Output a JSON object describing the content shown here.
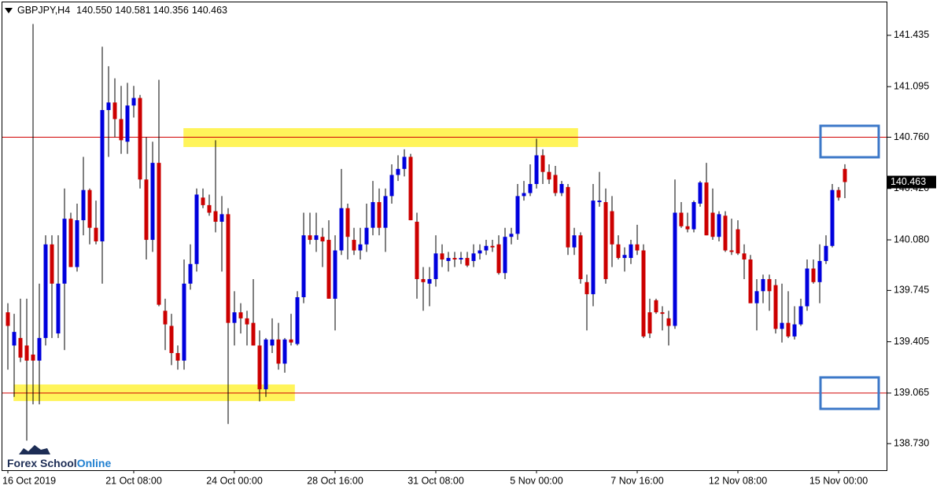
{
  "chart_data": {
    "type": "candlestick",
    "symbol": "GBPJPY,H4",
    "header_values": [
      "140.550",
      "140.581",
      "140.356",
      "140.463"
    ],
    "watermark": [
      "Forex School",
      "Online"
    ],
    "bull_color": "#0000dd",
    "bear_color": "#cc0000",
    "wick_color": "#000000",
    "level_color": "#d00000",
    "zone_color": "#fff45a",
    "levels": [
      140.76,
      139.065
    ],
    "zones": [
      {
        "low": 140.695,
        "high": 140.82
      },
      {
        "low": 139.012,
        "high": 139.122
      }
    ],
    "ylim": [
      138.554,
      141.669
    ],
    "yticks": [
      141.435,
      141.095,
      {
        "value": 140.76,
        "label": "140.760"
      },
      {
        "value": 140.42,
        "label": "140.420"
      },
      {
        "value": 140.08,
        "label": "140.080"
      },
      139.745,
      139.405,
      139.065,
      {
        "value": 138.73,
        "label": "138.730"
      }
    ],
    "grid": false,
    "categories": [
      "16 Oct 2019",
      null,
      null,
      null,
      null,
      null,
      null,
      null,
      null,
      null,
      null,
      null,
      null,
      null,
      null,
      null,
      null,
      null,
      null,
      null,
      "21 Oct 08:00",
      null,
      null,
      null,
      null,
      null,
      null,
      null,
      null,
      null,
      null,
      null,
      null,
      null,
      null,
      null,
      "24 Oct 00:00",
      null,
      null,
      null,
      null,
      null,
      null,
      null,
      null,
      null,
      null,
      null,
      null,
      null,
      null,
      null,
      "28 Oct 16:00",
      null,
      null,
      null,
      null,
      null,
      null,
      null,
      null,
      null,
      null,
      null,
      null,
      null,
      null,
      null,
      "31 Oct 08:00",
      null,
      null,
      null,
      null,
      null,
      null,
      null,
      null,
      null,
      null,
      null,
      null,
      null,
      null,
      null,
      "5 Nov 00:00",
      null,
      null,
      null,
      null,
      null,
      null,
      null,
      null,
      null,
      null,
      null,
      null,
      null,
      null,
      null,
      "7 Nov 16:00",
      null,
      null,
      null,
      null,
      null,
      null,
      null,
      null,
      null,
      null,
      null,
      null,
      null,
      null,
      null,
      "12 Nov 08:00",
      null,
      null,
      null,
      null,
      null,
      null,
      null,
      null,
      null,
      null,
      null,
      null,
      null,
      null,
      null,
      "15 Nov 00:00",
      null
    ],
    "open": [
      139.6,
      139.38,
      139.43,
      139.38,
      139.32,
      139.28,
      139.43,
      140.05,
      139.46,
      139.79,
      140.22,
      139.9,
      140.21,
      140.41,
      140.16,
      140.07,
      140.94,
      140.99,
      140.88,
      140.73,
      140.97,
      141.02,
      140.48,
      140.08,
      140.59,
      139.61,
      139.51,
      139.33,
      139.28,
      139.79,
      139.92,
      140.36,
      140.31,
      140.27,
      140.2,
      140.25,
      139.53,
      139.6,
      139.56,
      139.53,
      139.38,
      139.09,
      139.38,
      139.42,
      139.26,
      139.42,
      139.39,
      139.7,
      140.11,
      140.08,
      140.1,
      140.08,
      139.69,
      140.01,
      140.29,
      140.08,
      140.01,
      140.05,
      140.16,
      140.33,
      140.16,
      140.37,
      140.51,
      140.55,
      140.63,
      140.2,
      139.82,
      139.79,
      139.82,
      139.99,
      139.94,
      139.96,
      139.95,
      139.96,
      139.94,
      139.99,
      140.01,
      140.04,
      140.05,
      139.86,
      140.1,
      140.12,
      140.37,
      140.39,
      140.45,
      140.64,
      140.53,
      140.51,
      140.39,
      140.43,
      140.03,
      140.11,
      139.8,
      139.72,
      140.33,
      140.33,
      140.27,
      140.05,
      139.96,
      139.96,
      140.05,
      140.01,
      139.6,
      139.68,
      139.6,
      139.56,
      139.51,
      140.26,
      140.17,
      140.15,
      140.32,
      140.46,
      140.26,
      140.1,
      140.24,
      140.01,
      140.15,
      139.99,
      139.95,
      139.66,
      139.74,
      139.82,
      139.78,
      139.49,
      139.53,
      139.44,
      139.52,
      139.64,
      139.89,
      139.8,
      139.94,
      140.04,
      140.41,
      140.55
    ],
    "high": [
      139.66,
      139.59,
      139.69,
      139.69,
      141.51,
      139.79,
      140.11,
      140.11,
      140.11,
      140.42,
      140.26,
      140.32,
      140.63,
      140.42,
      140.34,
      141.36,
      141.23,
      141.15,
      141.1,
      141.12,
      141.1,
      141.04,
      140.76,
      140.73,
      141.14,
      139.69,
      139.59,
      139.38,
      139.95,
      140.05,
      140.42,
      140.42,
      140.38,
      140.74,
      140.37,
      140.29,
      139.74,
      139.66,
      139.61,
      139.82,
      139.48,
      139.43,
      139.56,
      139.53,
      139.43,
      139.59,
      139.74,
      140.26,
      140.26,
      140.26,
      140.16,
      140.21,
      140.11,
      140.55,
      140.32,
      140.16,
      140.16,
      140.32,
      140.47,
      140.42,
      140.42,
      140.58,
      140.64,
      140.68,
      140.65,
      140.26,
      139.9,
      139.9,
      140.11,
      140.05,
      140.0,
      140.0,
      140.0,
      140.0,
      140.05,
      140.05,
      140.08,
      140.08,
      140.11,
      140.16,
      140.16,
      140.45,
      140.47,
      140.58,
      140.75,
      140.68,
      140.58,
      140.57,
      140.47,
      140.45,
      140.16,
      140.13,
      139.85,
      140.45,
      140.53,
      140.42,
      140.37,
      140.11,
      140.03,
      140.08,
      140.18,
      140.05,
      139.69,
      139.69,
      139.64,
      139.61,
      140.48,
      140.33,
      140.26,
      140.34,
      140.47,
      140.59,
      140.42,
      140.27,
      140.27,
      140.22,
      140.21,
      140.05,
      139.98,
      139.82,
      139.85,
      139.85,
      139.82,
      139.79,
      139.74,
      139.64,
      139.69,
      139.95,
      139.95,
      140.05,
      140.11,
      140.45,
      140.43,
      140.581
    ],
    "low": [
      139.22,
      139.04,
      139.27,
      138.75,
      138.99,
      138.99,
      139.38,
      139.43,
      139.43,
      139.35,
      139.9,
      139.87,
      140.11,
      140.05,
      140.05,
      139.79,
      140.63,
      140.76,
      140.65,
      140.65,
      140.89,
      140.42,
      139.95,
      140.0,
      139.64,
      139.35,
      139.25,
      139.22,
      139.22,
      139.75,
      139.87,
      140.29,
      140.24,
      140.13,
      139.87,
      138.86,
      139.38,
      139.46,
      139.38,
      139.38,
      139.01,
      139.04,
      139.33,
      139.22,
      139.2,
      139.38,
      139.38,
      139.66,
      140.05,
      140.0,
      139.9,
      139.69,
      139.48,
      139.98,
      139.95,
      139.98,
      139.95,
      140.0,
      140.11,
      140.11,
      140.0,
      140.32,
      140.47,
      140.5,
      140.21,
      139.69,
      139.61,
      139.64,
      139.77,
      139.9,
      139.87,
      139.9,
      139.92,
      139.9,
      139.9,
      139.95,
      139.98,
      140.0,
      139.85,
      139.82,
      140.05,
      140.08,
      140.34,
      140.37,
      140.42,
      140.45,
      140.45,
      140.37,
      140.37,
      139.98,
      139.98,
      139.79,
      139.48,
      139.64,
      140.3,
      139.79,
      139.9,
      139.95,
      139.87,
      139.92,
      139.98,
      139.43,
      139.43,
      139.59,
      139.48,
      139.38,
      139.49,
      140.16,
      140.13,
      140.13,
      140.3,
      140.11,
      140.08,
      140.07,
      140.0,
      139.98,
      139.98,
      139.82,
      139.66,
      139.48,
      139.66,
      139.61,
      139.46,
      139.4,
      139.43,
      139.42,
      139.51,
      139.61,
      139.79,
      139.66,
      139.92,
      140.03,
      140.34,
      140.356
    ],
    "close": [
      139.51,
      139.47,
      139.3,
      139.28,
      139.28,
      139.43,
      140.05,
      139.79,
      139.79,
      140.22,
      139.9,
      140.21,
      140.41,
      140.16,
      140.07,
      140.94,
      140.99,
      140.88,
      140.74,
      140.97,
      141.02,
      140.48,
      140.08,
      140.59,
      139.65,
      139.52,
      139.33,
      139.28,
      139.79,
      139.92,
      140.38,
      140.31,
      140.26,
      140.2,
      140.25,
      139.53,
      139.6,
      139.56,
      139.52,
      139.38,
      139.09,
      139.42,
      139.42,
      139.26,
      139.42,
      139.4,
      139.7,
      140.11,
      140.08,
      140.11,
      140.07,
      139.69,
      140.01,
      140.29,
      140.1,
      140.01,
      140.05,
      140.16,
      140.33,
      140.16,
      140.37,
      140.51,
      140.55,
      140.63,
      140.21,
      139.82,
      139.8,
      139.82,
      139.99,
      139.95,
      139.96,
      139.95,
      139.96,
      139.91,
      139.99,
      140.01,
      140.04,
      140.03,
      139.86,
      140.1,
      140.12,
      140.37,
      140.39,
      140.45,
      140.64,
      140.53,
      140.48,
      140.39,
      140.45,
      140.03,
      140.11,
      139.82,
      139.72,
      140.34,
      140.34,
      139.82,
      140.05,
      139.96,
      139.98,
      140.05,
      140.01,
      139.44,
      139.46,
      139.6,
      139.59,
      139.51,
      140.26,
      140.17,
      140.15,
      140.33,
      140.46,
      140.11,
      140.1,
      140.25,
      140.01,
      140.0,
      139.99,
      139.95,
      139.66,
      139.74,
      139.82,
      139.74,
      139.49,
      139.53,
      139.44,
      139.52,
      139.64,
      139.89,
      139.8,
      139.94,
      140.04,
      140.41,
      140.36,
      140.463
    ]
  }
}
